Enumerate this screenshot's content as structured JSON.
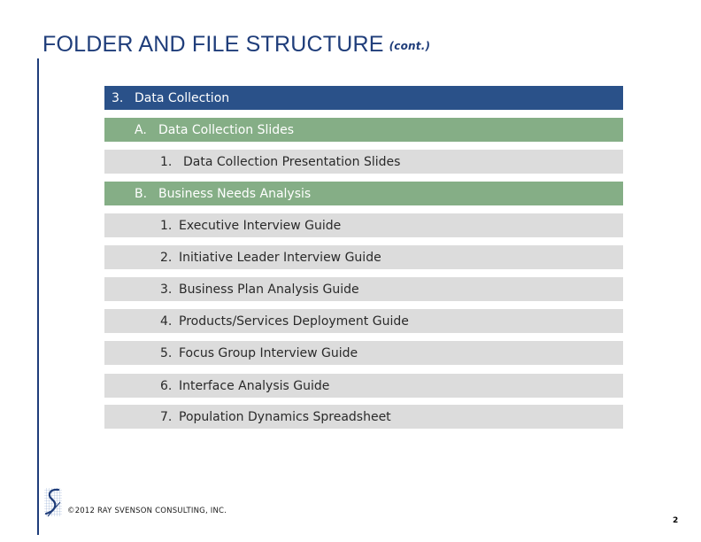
{
  "header": {
    "title": "FOLDER AND FILE STRUCTURE",
    "subtitle": "(cont.)"
  },
  "outline": {
    "section": {
      "number": "3.",
      "label": "Data Collection"
    },
    "groups": [
      {
        "letter": "A.",
        "label": "Data Collection Slides",
        "items": [
          {
            "number": "1.",
            "label": "Data Collection Presentation Slides"
          }
        ]
      },
      {
        "letter": "B.",
        "label": "Business Needs Analysis",
        "items": [
          {
            "number": "1.",
            "label": "Executive Interview Guide"
          },
          {
            "number": "2.",
            "label": "Initiative Leader Interview Guide"
          },
          {
            "number": "3.",
            "label": "Business Plan Analysis Guide"
          },
          {
            "number": "4.",
            "label": "Products/Services Deployment Guide"
          },
          {
            "number": "5.",
            "label": "Focus Group Interview Guide"
          },
          {
            "number": "6.",
            "label": "Interface Analysis Guide"
          },
          {
            "number": "7.",
            "label": "Population Dynamics Spreadsheet"
          }
        ]
      }
    ]
  },
  "footer": {
    "copyright": "©2012 RAY SVENSON CONSULTING, INC.",
    "page_number": "2",
    "logo_icon": "svenson-logo-icon"
  },
  "colors": {
    "title": "#1f3d7a",
    "section_bar": "#2a5189",
    "group_bar": "#85ae86",
    "item_bar": "#dcdcdc"
  }
}
